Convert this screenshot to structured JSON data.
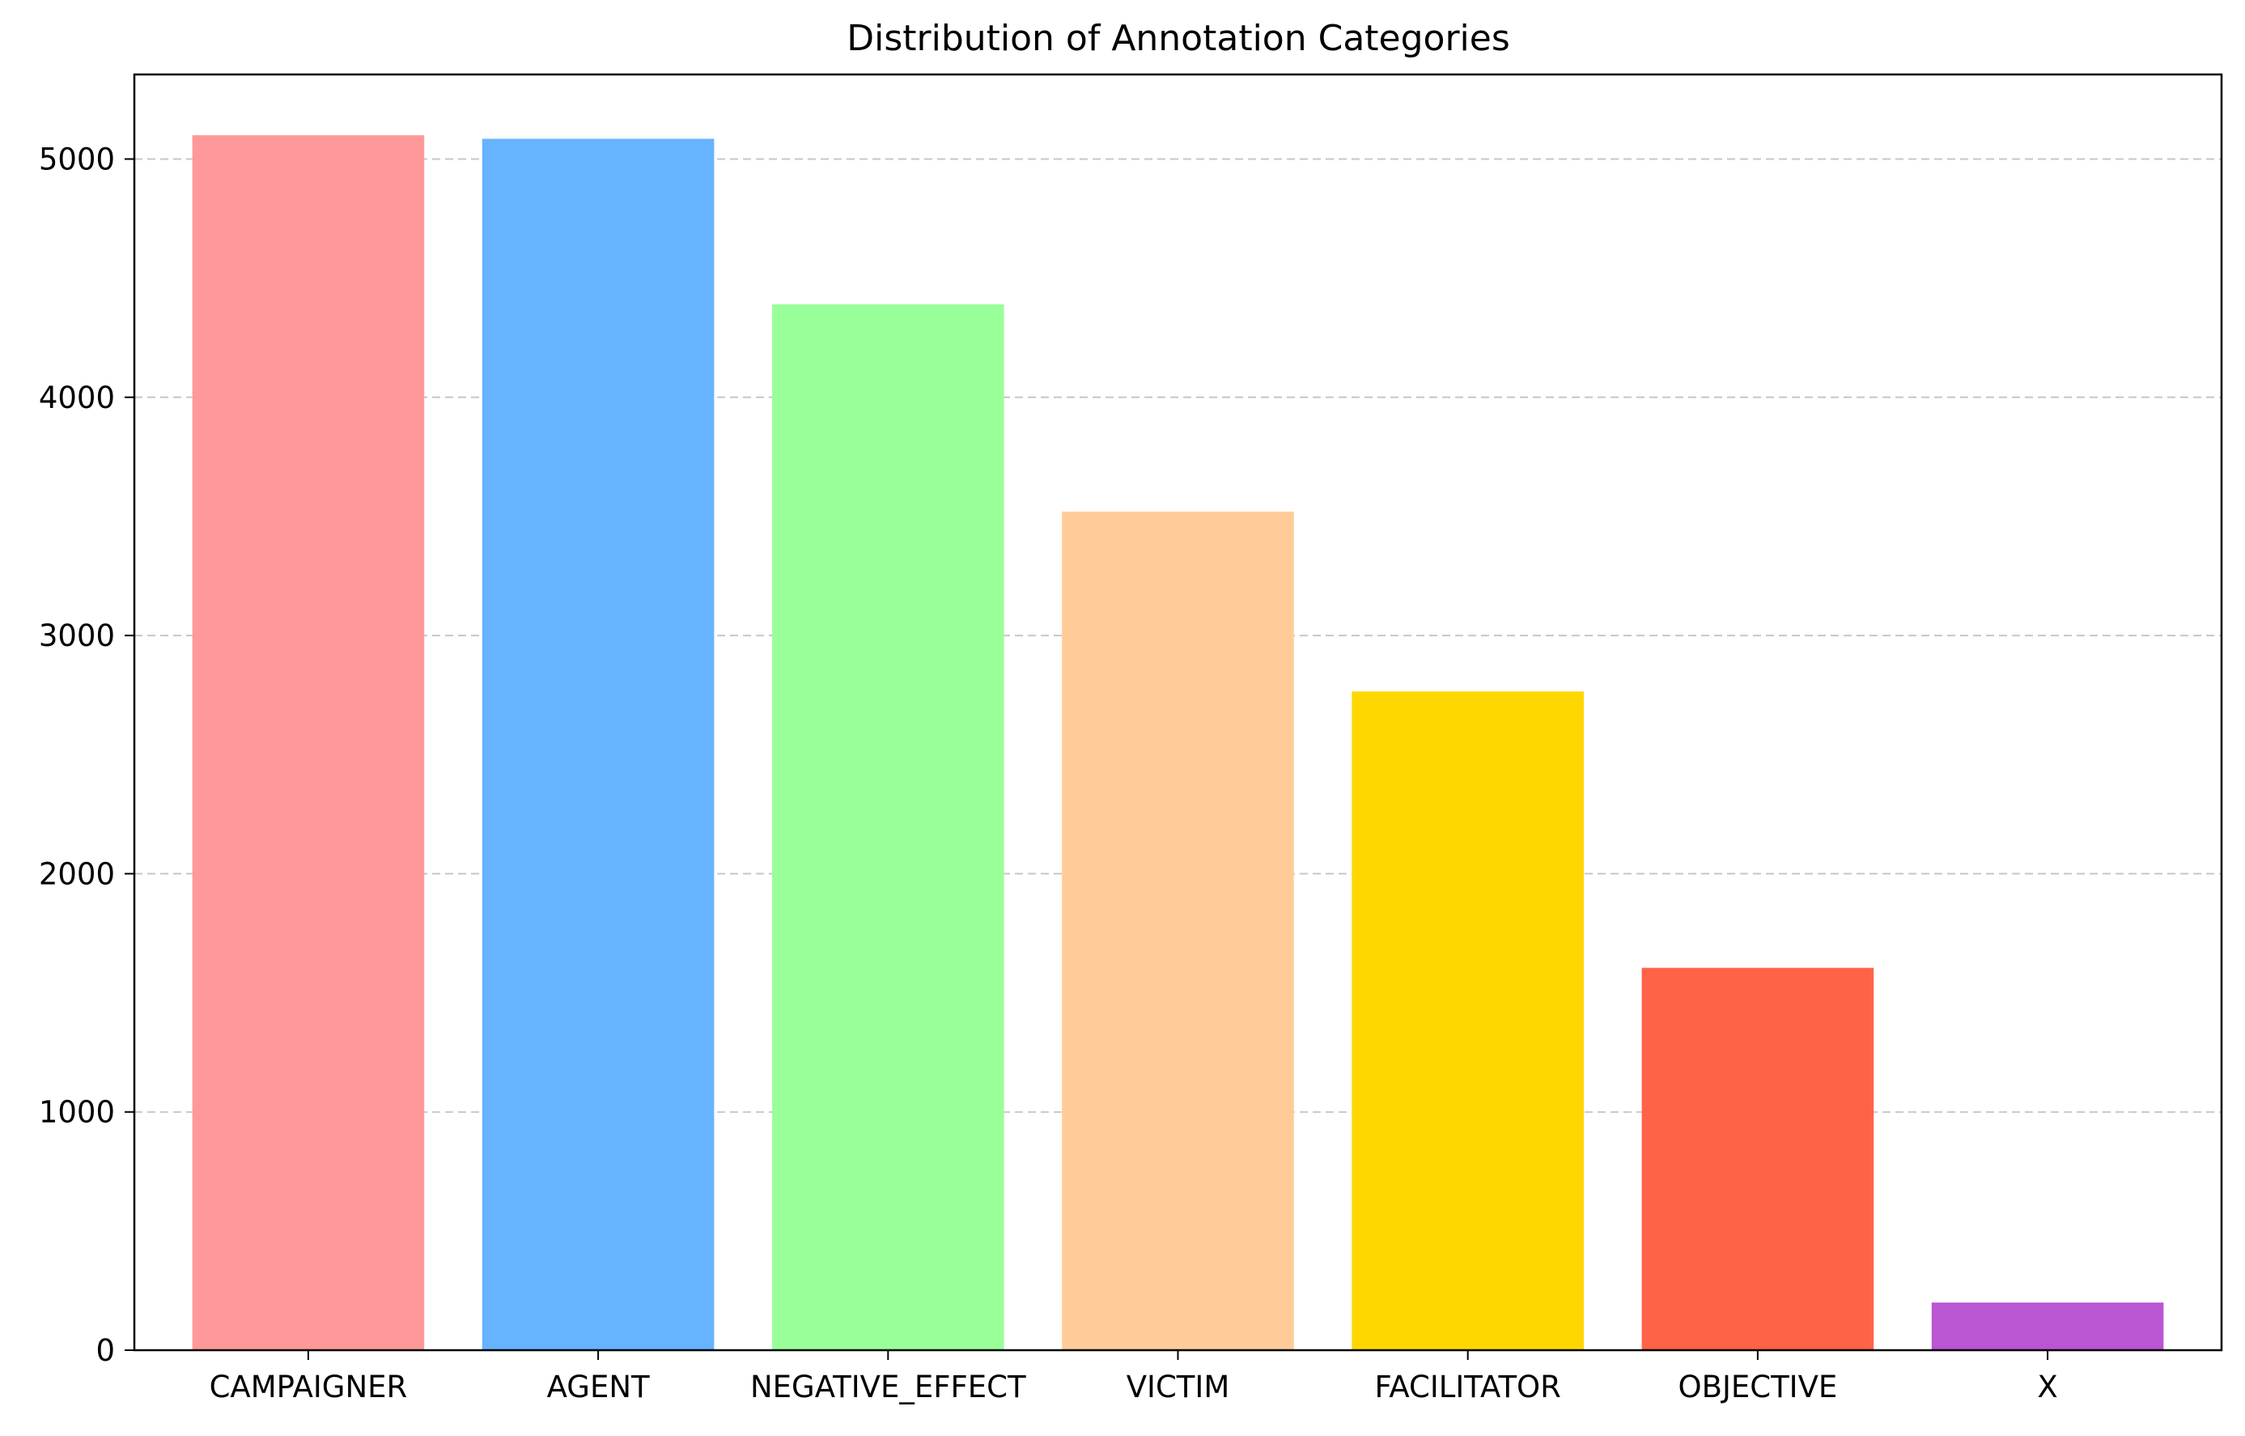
{
  "chart_data": {
    "type": "bar",
    "title": "Distribution of Annotation Categories",
    "xlabel": "",
    "ylabel": "",
    "categories": [
      "CAMPAIGNER",
      "AGENT",
      "NEGATIVE_EFFECT",
      "VICTIM",
      "FACILITATOR",
      "OBJECTIVE",
      "X"
    ],
    "values": [
      5100,
      5085,
      4390,
      3520,
      2765,
      1605,
      200
    ],
    "colors": [
      "#ff9999",
      "#66b3ff",
      "#99ff99",
      "#ffcc99",
      "#ffd700",
      "#ff6347",
      "#ba55d3"
    ],
    "ylim": [
      0,
      5355
    ],
    "yticks": [
      0,
      1000,
      2000,
      3000,
      4000,
      5000
    ],
    "grid": "y-axis dashed",
    "legend": "none"
  }
}
